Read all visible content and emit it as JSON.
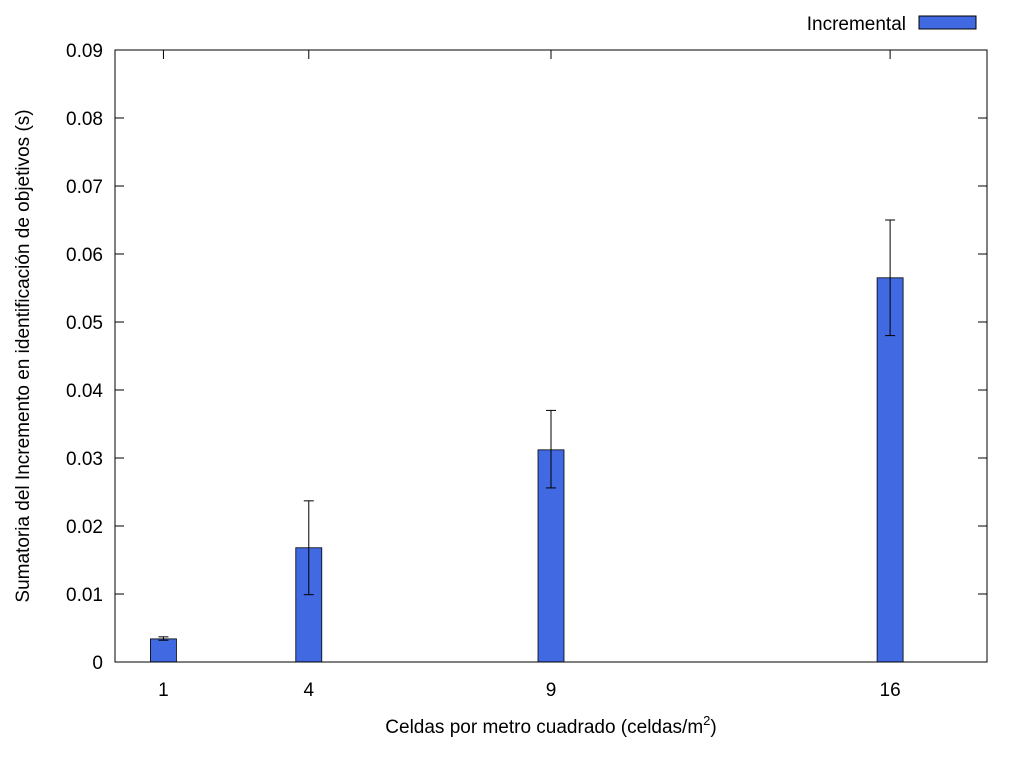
{
  "chart_data": {
    "type": "bar",
    "title": "",
    "xlabel": "Celdas por metro cuadrado (celdas/m",
    "xlabel_sup": "2",
    "xlabel_suffix": ")",
    "ylabel": "Sumatoria del Incremento en identificación de objetivos (s)",
    "xlim": [
      0,
      18
    ],
    "ylim": [
      0,
      0.09
    ],
    "yticks": [
      0,
      0.01,
      0.02,
      0.03,
      0.04,
      0.05,
      0.06,
      0.07,
      0.08,
      0.09
    ],
    "ytick_labels": [
      "0",
      "0.01",
      "0.02",
      "0.03",
      "0.04",
      "0.05",
      "0.06",
      "0.07",
      "0.08",
      "0.09"
    ],
    "xticks": [
      1,
      4,
      9,
      16
    ],
    "xtick_labels": [
      "1",
      "4",
      "9",
      "16"
    ],
    "grid": false,
    "legend_position": "top-right",
    "series": [
      {
        "name": "Incremental",
        "color": "#4169e1",
        "x": [
          1,
          4,
          9,
          16
        ],
        "values": [
          0.0034,
          0.0168,
          0.0312,
          0.0565
        ],
        "err_low": [
          0.0032,
          0.0099,
          0.0256,
          0.048
        ],
        "err_high": [
          0.0037,
          0.0237,
          0.037,
          0.065
        ]
      }
    ]
  }
}
